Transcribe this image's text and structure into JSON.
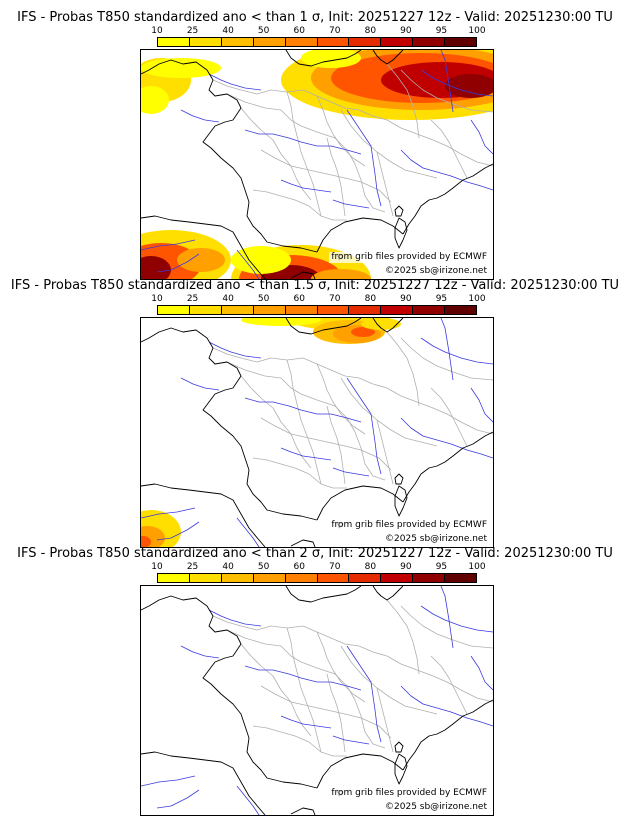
{
  "colorbar": {
    "ticks": [
      "10",
      "25",
      "40",
      "50",
      "60",
      "70",
      "80",
      "90",
      "95",
      "100"
    ],
    "colors": [
      "#ffff00",
      "#ffdf00",
      "#ffbf00",
      "#ff9f00",
      "#ff7f00",
      "#ff5500",
      "#e52b00",
      "#c00000",
      "#900000",
      "#600000"
    ]
  },
  "source_text": "from grib files provided by ECMWF",
  "copyright_text": "©2025 sb@irizone.net",
  "panels": [
    {
      "title": "IFS - Probas T850  standardized ano < than 1 σ, Init: 20251227 12z - Valid: 20251230:00 TU",
      "threshold_sigma": 1,
      "coverage": "high"
    },
    {
      "title": "IFS - Probas T850  standardized ano < than 1.5 σ, Init: 20251227 12z - Valid: 20251230:00 TU",
      "threshold_sigma": 1.5,
      "coverage": "medium"
    },
    {
      "title": "IFS - Probas T850  standardized ano < than 2 σ, Init: 20251227 12z - Valid: 20251230:00 TU",
      "threshold_sigma": 2,
      "coverage": "none"
    }
  ]
}
